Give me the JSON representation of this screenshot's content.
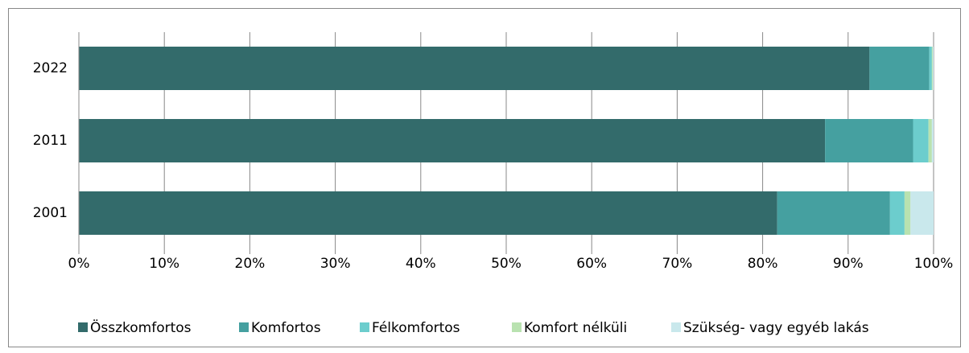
{
  "chart_data": {
    "type": "stacked-barh",
    "categories": [
      "2022",
      "2011",
      "2001"
    ],
    "series": [
      {
        "name": "Összkomfortos",
        "color": "#336b6b",
        "values": [
          92.5,
          87.3,
          81.7
        ]
      },
      {
        "name": "Komfortos",
        "color": "#45a0a0",
        "values": [
          7.0,
          10.3,
          13.2
        ]
      },
      {
        "name": "Félkomfortos",
        "color": "#6ccdcd",
        "values": [
          0.3,
          1.8,
          1.7
        ]
      },
      {
        "name": "Komfort nélküli",
        "color": "#b9e2b0",
        "values": [
          0.1,
          0.4,
          0.7
        ]
      },
      {
        "name": "Szükség- vagy egyéb lakás",
        "color": "#c9e8ec",
        "values": [
          0.1,
          0.2,
          2.7
        ]
      }
    ],
    "xlim": [
      0,
      100
    ],
    "xticks": [
      {
        "value": 0,
        "label": "0%"
      },
      {
        "value": 10,
        "label": "10%"
      },
      {
        "value": 20,
        "label": "20%"
      },
      {
        "value": 30,
        "label": "30%"
      },
      {
        "value": 40,
        "label": "40%"
      },
      {
        "value": 50,
        "label": "50%"
      },
      {
        "value": 60,
        "label": "60%"
      },
      {
        "value": 70,
        "label": "70%"
      },
      {
        "value": 80,
        "label": "80%"
      },
      {
        "value": 90,
        "label": "90%"
      },
      {
        "value": 100,
        "label": "100%"
      }
    ],
    "grid": true,
    "legend": "bottom"
  }
}
